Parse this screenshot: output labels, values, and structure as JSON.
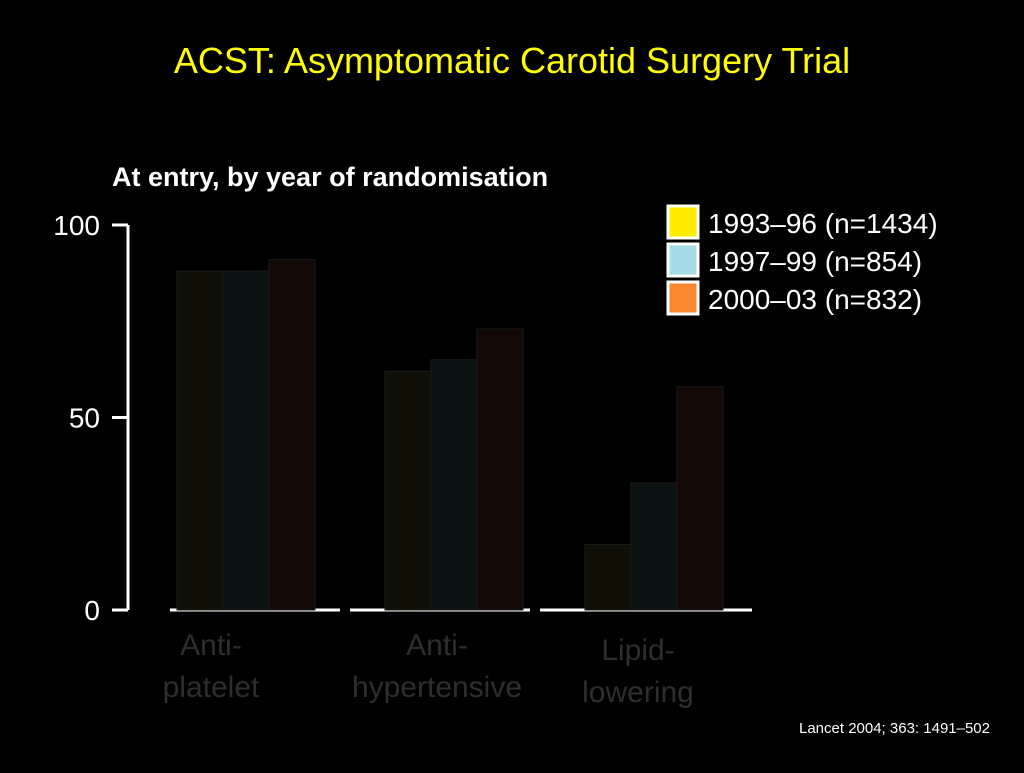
{
  "slide": {
    "title": "ACST: Asymptomatic Carotid Surgery Trial",
    "citation": "Lancet 2004; 363: 1491–502"
  },
  "chart_data": {
    "type": "bar",
    "title": "At entry, by year of randomisation",
    "xlabel": "",
    "ylabel": "",
    "ylim": [
      0,
      100
    ],
    "yticks": [
      0,
      50,
      100
    ],
    "grid": false,
    "legend_position": "top-right",
    "categories": [
      [
        "Anti-",
        "platelet"
      ],
      [
        "Anti-",
        "hypertensive"
      ],
      [
        "Lipid-",
        "lowering"
      ]
    ],
    "series": [
      {
        "name": "1993–96 (n=1434)",
        "color": "#ffec00",
        "bar_fill": "#0f0f05",
        "values": [
          88,
          62,
          17
        ]
      },
      {
        "name": "1997–99 (n=854)",
        "color": "#a6dbe8",
        "bar_fill": "#0a1212",
        "values": [
          88,
          65,
          33
        ]
      },
      {
        "name": "2000–03 (n=832)",
        "color": "#f7882f",
        "bar_fill": "#130806",
        "values": [
          91,
          73,
          58
        ]
      }
    ]
  }
}
